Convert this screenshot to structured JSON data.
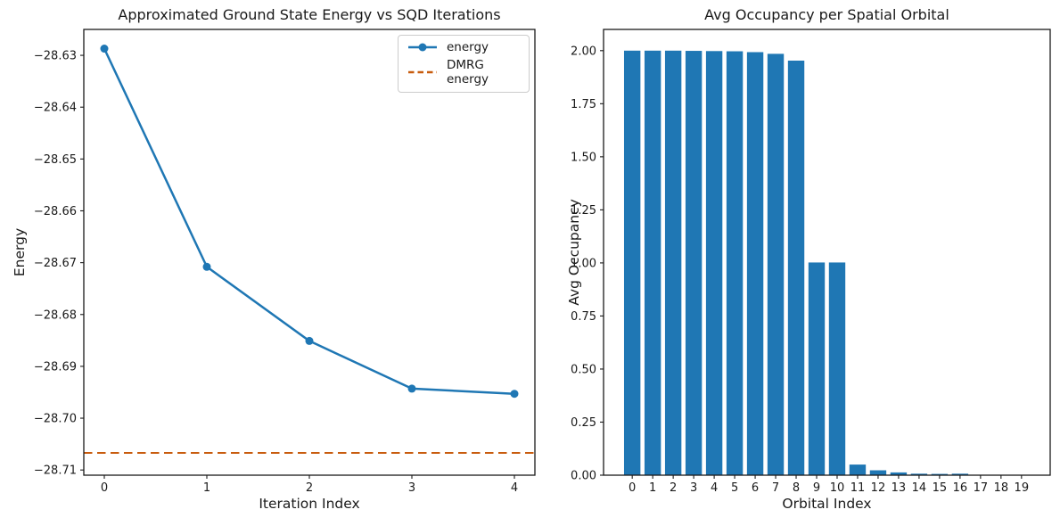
{
  "figure": {
    "background": "#ffffff",
    "text_color": "#1a1a1a",
    "accent_blue": "#1f77b4",
    "accent_orange": "#c85c0e"
  },
  "chart_data": [
    {
      "type": "line",
      "title": "Approximated Ground State Energy vs SQD Iterations",
      "xlabel": "Iteration Index",
      "ylabel": "Energy",
      "x": [
        0,
        1,
        2,
        3,
        4
      ],
      "series": [
        {
          "name": "energy",
          "values": [
            -28.6287,
            -28.6708,
            -28.6851,
            -28.6943,
            -28.6953
          ],
          "color": "#1f77b4",
          "marker": "circle",
          "style": "solid"
        }
      ],
      "hline": {
        "label": "DMRG energy",
        "value": -28.7067,
        "color": "#c85c0e",
        "style": "dashed"
      },
      "xlim": [
        -0.2,
        4.2
      ],
      "ylim": [
        -28.711,
        -28.625
      ],
      "xticks": [
        0,
        1,
        2,
        3,
        4
      ],
      "xtick_labels": [
        "0",
        "1",
        "2",
        "3",
        "4"
      ],
      "yticks": [
        -28.63,
        -28.64,
        -28.65,
        -28.66,
        -28.67,
        -28.68,
        -28.69,
        -28.7,
        -28.71
      ],
      "ytick_labels": [
        "−28.63",
        "−28.64",
        "−28.65",
        "−28.66",
        "−28.67",
        "−28.68",
        "−28.69",
        "−28.70",
        "−28.71"
      ],
      "grid": false,
      "legend": {
        "position": "upper right",
        "entries": [
          "energy",
          "DMRG energy"
        ]
      }
    },
    {
      "type": "bar",
      "title": "Avg Occupancy per Spatial Orbital",
      "xlabel": "Orbital Index",
      "ylabel": "Avg Occupancy",
      "categories": [
        "0",
        "1",
        "2",
        "3",
        "4",
        "5",
        "6",
        "7",
        "8",
        "9",
        "10",
        "11",
        "12",
        "13",
        "14",
        "15",
        "16",
        "17",
        "18",
        "19"
      ],
      "values": [
        2.0,
        2.0,
        2.0,
        1.999,
        1.998,
        1.997,
        1.993,
        1.985,
        1.953,
        1.002,
        1.002,
        0.05,
        0.023,
        0.013,
        0.007,
        0.006,
        0.007,
        0.0,
        0.0,
        0.0
      ],
      "color": "#1f77b4",
      "bar_width": 0.8,
      "xlim": [
        -1.4,
        20.4
      ],
      "ylim": [
        0,
        2.1
      ],
      "yticks": [
        0.0,
        0.25,
        0.5,
        0.75,
        1.0,
        1.25,
        1.5,
        1.75,
        2.0
      ],
      "ytick_labels": [
        "0.00",
        "0.25",
        "0.50",
        "0.75",
        "1.00",
        "1.25",
        "1.50",
        "1.75",
        "2.00"
      ],
      "grid": false,
      "legend": null
    }
  ]
}
